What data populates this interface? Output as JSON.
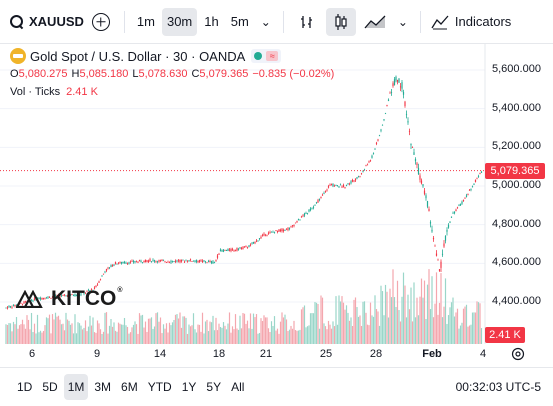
{
  "toolbar": {
    "symbol": "XAUUSD",
    "intervals": [
      "1m",
      "30m",
      "1h",
      "5m"
    ],
    "active_interval": "30m",
    "indicators_label": "Indicators"
  },
  "legend": {
    "title": "Gold Spot / U.S. Dollar · 30 · OANDA",
    "open_key": "O",
    "open": "5,080.275",
    "high_key": "H",
    "high": "5,085.180",
    "low_key": "L",
    "low": "5,078.630",
    "close_key": "C",
    "close": "5,079.365",
    "change": "−0.835 (−0.02%)",
    "volume_label": "Vol · Ticks",
    "volume_value": "2.41 K"
  },
  "price_axis": {
    "labels": [
      "5,600.000",
      "5,400.000",
      "5,200.000",
      "5,000.000",
      "4,800.000",
      "4,600.000",
      "4,400.000"
    ],
    "current_price": "5,079.365",
    "current_volume": "2.41 K"
  },
  "time_axis": {
    "labels": [
      "6",
      "9",
      "14",
      "18",
      "21",
      "25",
      "28",
      "Feb",
      "4"
    ]
  },
  "watermark": {
    "brand": "KITCO",
    "reg": "®"
  },
  "colors": {
    "up": "#22ab94",
    "down": "#f23645",
    "vol_up": "#9ad6c9",
    "vol_down": "#f4a7ae"
  },
  "bottom": {
    "ranges": [
      "1D",
      "5D",
      "1M",
      "3M",
      "6M",
      "YTD",
      "1Y",
      "5Y",
      "All"
    ],
    "active_range": "1M",
    "clock": "00:32:03 UTC-5"
  }
}
